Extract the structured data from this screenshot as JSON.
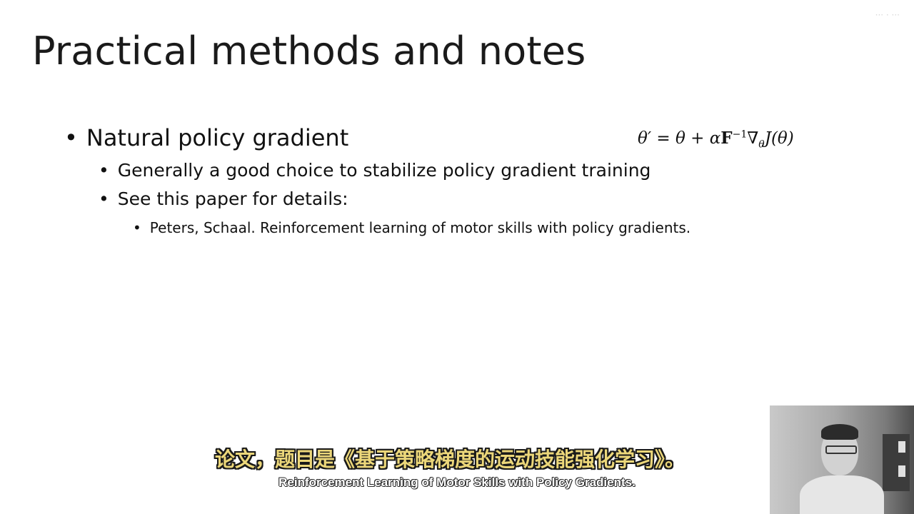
{
  "slide": {
    "title": "Practical methods and notes",
    "watermark": "··· · ···",
    "bullet1": "Natural policy gradient",
    "formula": {
      "lhs": "θ′ = θ + α",
      "matrix": "F",
      "power": "−1",
      "nabla": "∇",
      "sub": "θ",
      "rhs": "J(θ)"
    },
    "bullet2a": "Generally a good choice to stabilize policy gradient training",
    "bullet2b": "See this paper for details:",
    "bullet3": "Peters, Schaal. Reinforcement learning of motor skills with policy gradients."
  },
  "subtitles": {
    "zh": "论文，题目是《基于策略梯度的运动技能强化学习》。",
    "en": "Reinforcement Learning of Motor Skills with Policy Gradients."
  },
  "bullet_glyph": "•"
}
